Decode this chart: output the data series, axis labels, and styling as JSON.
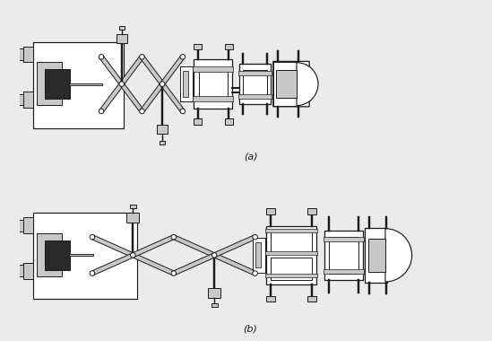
{
  "bg_color": "#ebebeb",
  "line_color": "#1a1a1a",
  "fill_light": "#c8c8c8",
  "fill_mid": "#888888",
  "fill_dark": "#2a2a2a",
  "white": "#ffffff",
  "label_a": "(a)",
  "label_b": "(b)",
  "figsize": [
    5.49,
    3.8
  ],
  "dpi": 100
}
